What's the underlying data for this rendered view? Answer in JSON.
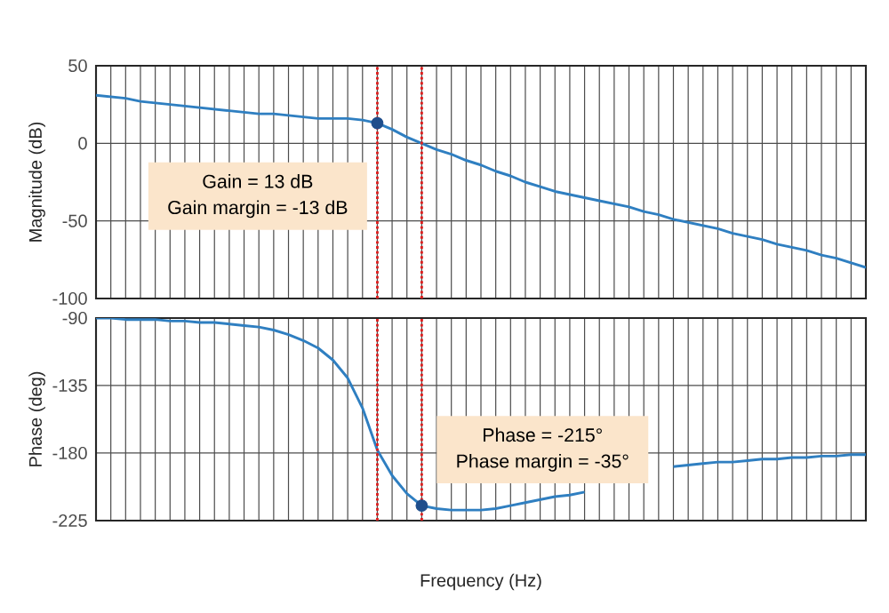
{
  "chart_data": [
    {
      "type": "line",
      "ylabel": "Magnitude (dB)",
      "ylim": [
        -100,
        50
      ],
      "yticks": [
        -100,
        -50,
        0,
        50
      ],
      "grid": true,
      "tick_labels": "y",
      "categories": [
        null,
        null,
        null,
        null,
        null,
        null,
        null,
        null,
        null,
        null,
        null,
        null,
        null,
        null,
        null,
        null,
        null,
        null,
        null,
        null,
        null,
        null,
        null,
        null,
        null,
        null,
        null,
        null,
        null,
        null,
        null,
        null,
        null,
        null,
        null,
        null,
        null,
        null,
        null,
        null,
        null,
        null,
        null,
        null,
        null,
        null,
        null,
        null,
        null,
        null,
        null,
        null,
        null
      ],
      "series": [
        {
          "color": "#2f7fc1",
          "values": [
            31,
            30,
            29,
            27,
            26,
            25,
            24,
            23,
            22,
            21,
            20,
            19,
            19,
            18,
            17,
            16,
            16,
            16,
            15,
            13,
            9,
            4,
            0,
            -4,
            -7,
            -11,
            -14,
            -18,
            -21,
            -25,
            -28,
            -31,
            -33,
            -35,
            -37,
            -39,
            -41,
            -44,
            -46,
            -49,
            -51,
            -53,
            -55,
            -58,
            -60,
            -62,
            -65,
            -67,
            -69,
            -72,
            -74,
            -77,
            -80
          ]
        },
        {
          "type": "scatter",
          "color": "#1f4e8c",
          "marker": "circle",
          "values": [
            null,
            null,
            null,
            null,
            null,
            null,
            null,
            null,
            null,
            null,
            null,
            null,
            null,
            null,
            null,
            null,
            null,
            null,
            null,
            13,
            null,
            null,
            null,
            null,
            null,
            null,
            null,
            null,
            null,
            null,
            null,
            null,
            null,
            null,
            null,
            null,
            null,
            null,
            null,
            null,
            null,
            null,
            null,
            null,
            null,
            null,
            null,
            null,
            null,
            null,
            null,
            null,
            null
          ]
        }
      ],
      "annotations": [
        "Gain = 13 dB",
        "Gain margin = -13 dB"
      ]
    },
    {
      "type": "line",
      "ylabel": "Phase (deg)",
      "xlabel": "Frequency  (Hz)",
      "ylim": [
        -225,
        -90
      ],
      "yticks": [
        -225,
        -180,
        -135,
        -90
      ],
      "grid": true,
      "tick_labels": "y",
      "categories": [
        null,
        null,
        null,
        null,
        null,
        null,
        null,
        null,
        null,
        null,
        null,
        null,
        null,
        null,
        null,
        null,
        null,
        null,
        null,
        null,
        null,
        null,
        null,
        null,
        null,
        null,
        null,
        null,
        null,
        null,
        null,
        null,
        null,
        null,
        null,
        null,
        null,
        null,
        null,
        null,
        null,
        null,
        null,
        null,
        null,
        null,
        null,
        null,
        null,
        null,
        null,
        null,
        null
      ],
      "series": [
        {
          "color": "#2f7fc1",
          "values": [
            -90,
            -90,
            -91,
            -91,
            -91,
            -92,
            -92,
            -93,
            -93,
            -94,
            -95,
            -96,
            -98,
            -101,
            -105,
            -110,
            -118,
            -130,
            -150,
            -178,
            -195,
            -207,
            -215,
            -217,
            -218,
            -218,
            -218,
            -217,
            -215,
            -213,
            -211,
            -209,
            -208,
            -206,
            null,
            null,
            null,
            null,
            null,
            -189,
            -188,
            -187,
            -186,
            -186,
            -185,
            -184,
            -184,
            -183,
            -183,
            -182,
            -182,
            -181,
            -181
          ]
        },
        {
          "type": "scatter",
          "color": "#1f4e8c",
          "marker": "circle",
          "values": [
            null,
            null,
            null,
            null,
            null,
            null,
            null,
            null,
            null,
            null,
            null,
            null,
            null,
            null,
            null,
            null,
            null,
            null,
            null,
            null,
            null,
            null,
            -215,
            null,
            null,
            null,
            null,
            null,
            null,
            null,
            null,
            null,
            null,
            null,
            null,
            null,
            null,
            null,
            null,
            null,
            null,
            null,
            null,
            null,
            null,
            null,
            null,
            null,
            null,
            null,
            null,
            null,
            null
          ]
        }
      ],
      "annotations": [
        "Phase = -215°",
        "Phase margin = -35°"
      ]
    }
  ]
}
